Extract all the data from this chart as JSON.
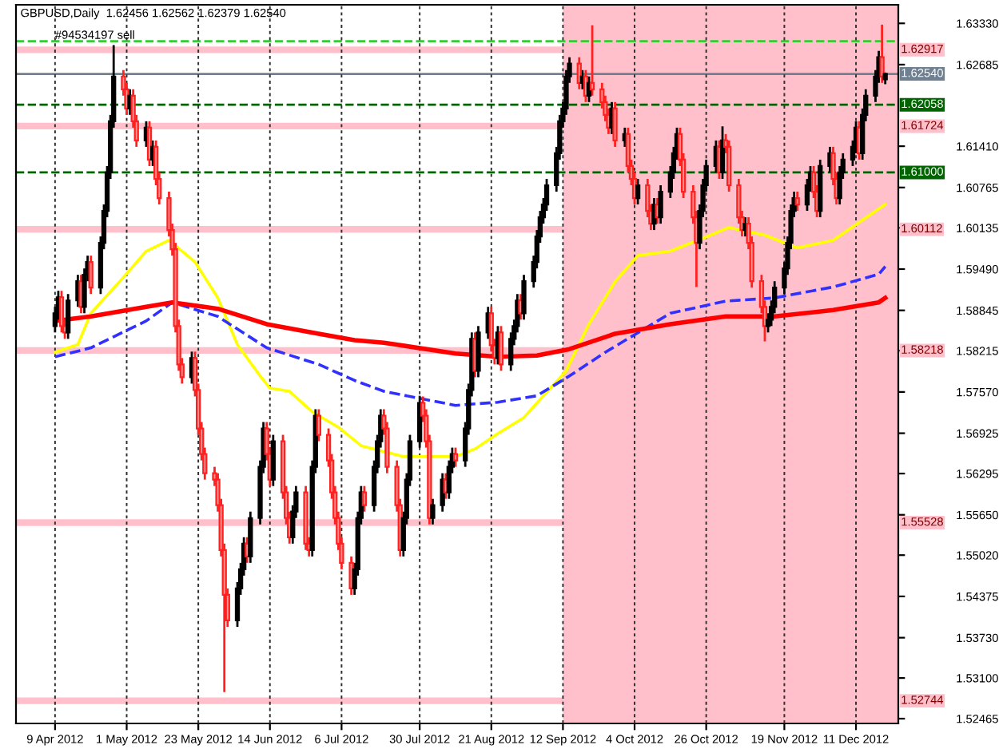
{
  "chart_data": {
    "type": "candlestick",
    "title": "GBPUSD,Daily  1.62456 1.62562 1.62379 1.62540",
    "x": [
      "2012-04-09",
      "2012-04-10",
      "2012-04-11",
      "2012-04-12",
      "2012-04-13",
      "2012-04-16",
      "2012-04-17",
      "2012-04-18",
      "2012-04-19",
      "2012-04-20",
      "2012-04-23",
      "2012-04-24",
      "2012-04-25",
      "2012-04-26",
      "2012-04-27",
      "2012-04-30",
      "2012-05-01",
      "2012-05-02",
      "2012-05-03",
      "2012-05-04",
      "2012-05-07",
      "2012-05-08",
      "2012-05-09",
      "2012-05-10",
      "2012-05-11",
      "2012-05-14",
      "2012-05-15",
      "2012-05-16",
      "2012-05-17",
      "2012-05-18",
      "2012-05-21",
      "2012-05-22",
      "2012-05-23",
      "2012-05-24",
      "2012-05-25",
      "2012-05-28",
      "2012-05-29",
      "2012-05-30",
      "2012-05-31",
      "2012-06-01",
      "2012-06-04",
      "2012-06-05",
      "2012-06-06",
      "2012-06-07",
      "2012-06-08",
      "2012-06-11",
      "2012-06-12",
      "2012-06-13",
      "2012-06-14",
      "2012-06-15",
      "2012-06-18",
      "2012-06-19",
      "2012-06-20",
      "2012-06-21",
      "2012-06-22",
      "2012-06-25",
      "2012-06-26",
      "2012-06-27",
      "2012-06-28",
      "2012-06-29",
      "2012-07-02",
      "2012-07-03",
      "2012-07-04",
      "2012-07-05",
      "2012-07-06",
      "2012-07-09",
      "2012-07-10",
      "2012-07-11",
      "2012-07-12",
      "2012-07-13",
      "2012-07-16",
      "2012-07-17",
      "2012-07-18",
      "2012-07-19",
      "2012-07-20",
      "2012-07-23",
      "2012-07-24",
      "2012-07-25",
      "2012-07-26",
      "2012-07-27",
      "2012-07-30",
      "2012-07-31",
      "2012-08-01",
      "2012-08-02",
      "2012-08-03",
      "2012-08-06",
      "2012-08-07",
      "2012-08-08",
      "2012-08-09",
      "2012-08-10",
      "2012-08-13",
      "2012-08-14",
      "2012-08-15",
      "2012-08-16",
      "2012-08-17",
      "2012-08-20",
      "2012-08-21",
      "2012-08-22",
      "2012-08-23",
      "2012-08-24",
      "2012-08-27",
      "2012-08-28",
      "2012-08-29",
      "2012-08-30",
      "2012-08-31",
      "2012-09-03",
      "2012-09-04",
      "2012-09-05",
      "2012-09-06",
      "2012-09-07",
      "2012-09-10",
      "2012-09-11",
      "2012-09-12",
      "2012-09-13",
      "2012-09-14",
      "2012-09-17",
      "2012-09-18",
      "2012-09-19",
      "2012-09-20",
      "2012-09-21",
      "2012-09-24",
      "2012-09-25",
      "2012-09-26",
      "2012-09-27",
      "2012-09-28",
      "2012-10-01",
      "2012-10-02",
      "2012-10-03",
      "2012-10-04",
      "2012-10-05",
      "2012-10-08",
      "2012-10-09",
      "2012-10-10",
      "2012-10-11",
      "2012-10-12",
      "2012-10-15",
      "2012-10-16",
      "2012-10-17",
      "2012-10-18",
      "2012-10-19",
      "2012-10-22",
      "2012-10-23",
      "2012-10-24",
      "2012-10-25",
      "2012-10-26",
      "2012-10-29",
      "2012-10-30",
      "2012-10-31",
      "2012-11-01",
      "2012-11-02",
      "2012-11-05",
      "2012-11-06",
      "2012-11-07",
      "2012-11-08",
      "2012-11-09",
      "2012-11-12",
      "2012-11-13",
      "2012-11-14",
      "2012-11-15",
      "2012-11-16",
      "2012-11-19",
      "2012-11-20",
      "2012-11-21",
      "2012-11-22",
      "2012-11-23",
      "2012-11-26",
      "2012-11-27",
      "2012-11-28",
      "2012-11-29",
      "2012-11-30",
      "2012-12-03",
      "2012-12-04",
      "2012-12-05",
      "2012-12-06",
      "2012-12-07",
      "2012-12-10",
      "2012-12-11",
      "2012-12-12",
      "2012-12-13",
      "2012-12-14",
      "2012-12-17",
      "2012-12-18",
      "2012-12-19",
      "2012-12-20"
    ],
    "ohlc": [
      [
        1.586,
        1.589,
        1.585,
        1.588
      ],
      [
        1.588,
        1.5915,
        1.587,
        1.5905
      ],
      [
        1.5905,
        1.5915,
        1.585,
        1.586
      ],
      [
        1.586,
        1.587,
        1.584,
        1.585
      ],
      [
        1.585,
        1.591,
        1.584,
        1.59
      ],
      [
        1.59,
        1.594,
        1.589,
        1.593
      ],
      [
        1.593,
        1.594,
        1.588,
        1.589
      ],
      [
        1.589,
        1.595,
        1.588,
        1.594
      ],
      [
        1.594,
        1.597,
        1.593,
        1.596
      ],
      [
        1.596,
        1.597,
        1.591,
        1.592
      ],
      [
        1.592,
        1.6,
        1.591,
        1.599
      ],
      [
        1.599,
        1.605,
        1.598,
        1.604
      ],
      [
        1.604,
        1.611,
        1.603,
        1.61
      ],
      [
        1.61,
        1.619,
        1.609,
        1.618
      ],
      [
        1.618,
        1.6299,
        1.617,
        1.625
      ],
      [
        1.625,
        1.626,
        1.622,
        1.623
      ],
      [
        1.623,
        1.624,
        1.619,
        1.62
      ],
      [
        1.62,
        1.623,
        1.619,
        1.622
      ],
      [
        1.622,
        1.623,
        1.617,
        1.618
      ],
      [
        1.618,
        1.619,
        1.614,
        1.615
      ],
      [
        1.615,
        1.618,
        1.614,
        1.617
      ],
      [
        1.617,
        1.618,
        1.611,
        1.612
      ],
      [
        1.612,
        1.615,
        1.611,
        1.614
      ],
      [
        1.614,
        1.615,
        1.608,
        1.609
      ],
      [
        1.609,
        1.61,
        1.605,
        1.606
      ],
      [
        1.606,
        1.607,
        1.6,
        1.601
      ],
      [
        1.601,
        1.602,
        1.597,
        1.598
      ],
      [
        1.598,
        1.599,
        1.585,
        1.586
      ],
      [
        1.586,
        1.587,
        1.579,
        1.58
      ],
      [
        1.58,
        1.581,
        1.577,
        1.578
      ],
      [
        1.578,
        1.582,
        1.577,
        1.581
      ],
      [
        1.581,
        1.582,
        1.575,
        1.576
      ],
      [
        1.576,
        1.577,
        1.569,
        1.57
      ],
      [
        1.57,
        1.571,
        1.565,
        1.566
      ],
      [
        1.566,
        1.567,
        1.562,
        1.563
      ],
      [
        1.563,
        1.564,
        1.561,
        1.562
      ],
      [
        1.562,
        1.563,
        1.557,
        1.558
      ],
      [
        1.558,
        1.559,
        1.55,
        1.551
      ],
      [
        1.551,
        1.552,
        1.5288,
        1.544
      ],
      [
        1.544,
        1.545,
        1.539,
        1.54
      ],
      [
        1.54,
        1.546,
        1.539,
        1.545
      ],
      [
        1.545,
        1.549,
        1.544,
        1.548
      ],
      [
        1.548,
        1.553,
        1.547,
        1.552
      ],
      [
        1.552,
        1.553,
        1.549,
        1.55
      ],
      [
        1.55,
        1.557,
        1.549,
        1.556
      ],
      [
        1.556,
        1.565,
        1.555,
        1.564
      ],
      [
        1.564,
        1.571,
        1.563,
        1.57
      ],
      [
        1.57,
        1.571,
        1.565,
        1.566
      ],
      [
        1.566,
        1.567,
        1.561,
        1.562
      ],
      [
        1.562,
        1.569,
        1.561,
        1.568
      ],
      [
        1.568,
        1.569,
        1.559,
        1.56
      ],
      [
        1.56,
        1.561,
        1.555,
        1.556
      ],
      [
        1.556,
        1.557,
        1.552,
        1.553
      ],
      [
        1.553,
        1.558,
        1.552,
        1.557
      ],
      [
        1.557,
        1.561,
        1.556,
        1.56
      ],
      [
        1.56,
        1.561,
        1.551,
        1.552
      ],
      [
        1.552,
        1.553,
        1.55,
        1.551
      ],
      [
        1.551,
        1.565,
        1.55,
        1.564
      ],
      [
        1.564,
        1.573,
        1.563,
        1.572
      ],
      [
        1.572,
        1.573,
        1.568,
        1.569
      ],
      [
        1.569,
        1.57,
        1.564,
        1.565
      ],
      [
        1.565,
        1.566,
        1.559,
        1.56
      ],
      [
        1.56,
        1.561,
        1.555,
        1.556
      ],
      [
        1.556,
        1.557,
        1.551,
        1.552
      ],
      [
        1.552,
        1.553,
        1.548,
        1.549
      ],
      [
        1.549,
        1.55,
        1.544,
        1.545
      ],
      [
        1.545,
        1.549,
        1.544,
        1.548
      ],
      [
        1.548,
        1.557,
        1.547,
        1.556
      ],
      [
        1.556,
        1.561,
        1.555,
        1.56
      ],
      [
        1.56,
        1.561,
        1.557,
        1.558
      ],
      [
        1.558,
        1.565,
        1.557,
        1.564
      ],
      [
        1.564,
        1.569,
        1.563,
        1.568
      ],
      [
        1.568,
        1.573,
        1.567,
        1.572
      ],
      [
        1.572,
        1.573,
        1.569,
        1.57
      ],
      [
        1.57,
        1.571,
        1.563,
        1.564
      ],
      [
        1.564,
        1.565,
        1.557,
        1.558
      ],
      [
        1.558,
        1.559,
        1.55,
        1.551
      ],
      [
        1.551,
        1.557,
        1.55,
        1.556
      ],
      [
        1.556,
        1.563,
        1.555,
        1.562
      ],
      [
        1.562,
        1.569,
        1.561,
        1.568
      ],
      [
        1.568,
        1.5751,
        1.567,
        1.574
      ],
      [
        1.574,
        1.575,
        1.571,
        1.572
      ],
      [
        1.572,
        1.573,
        1.567,
        1.568
      ],
      [
        1.568,
        1.569,
        1.555,
        1.556
      ],
      [
        1.556,
        1.559,
        1.555,
        1.558
      ],
      [
        1.558,
        1.563,
        1.557,
        1.562
      ],
      [
        1.562,
        1.563,
        1.559,
        1.56
      ],
      [
        1.56,
        1.565,
        1.559,
        1.564
      ],
      [
        1.564,
        1.567,
        1.563,
        1.566
      ],
      [
        1.566,
        1.567,
        1.564,
        1.565
      ],
      [
        1.565,
        1.571,
        1.564,
        1.57
      ],
      [
        1.57,
        1.577,
        1.569,
        1.576
      ],
      [
        1.576,
        1.585,
        1.575,
        1.584
      ],
      [
        1.584,
        1.585,
        1.578,
        1.579
      ],
      [
        1.579,
        1.586,
        1.578,
        1.585
      ],
      [
        1.585,
        1.589,
        1.584,
        1.588
      ],
      [
        1.588,
        1.589,
        1.582,
        1.583
      ],
      [
        1.583,
        1.584,
        1.58,
        1.581
      ],
      [
        1.581,
        1.586,
        1.58,
        1.585
      ],
      [
        1.585,
        1.586,
        1.579,
        1.58
      ],
      [
        1.58,
        1.585,
        1.579,
        1.584
      ],
      [
        1.584,
        1.587,
        1.583,
        1.586
      ],
      [
        1.586,
        1.591,
        1.585,
        1.59
      ],
      [
        1.59,
        1.591,
        1.587,
        1.588
      ],
      [
        1.588,
        1.594,
        1.587,
        1.593
      ],
      [
        1.593,
        1.597,
        1.592,
        1.596
      ],
      [
        1.596,
        1.601,
        1.595,
        1.6
      ],
      [
        1.6,
        1.604,
        1.599,
        1.603
      ],
      [
        1.603,
        1.606,
        1.602,
        1.605
      ],
      [
        1.605,
        1.609,
        1.604,
        1.608
      ],
      [
        1.608,
        1.614,
        1.607,
        1.613
      ],
      [
        1.613,
        1.619,
        1.612,
        1.618
      ],
      [
        1.618,
        1.621,
        1.617,
        1.62
      ],
      [
        1.62,
        1.626,
        1.619,
        1.625
      ],
      [
        1.625,
        1.628,
        1.624,
        1.627
      ],
      [
        1.627,
        1.628,
        1.623,
        1.624
      ],
      [
        1.624,
        1.626,
        1.623,
        1.625
      ],
      [
        1.625,
        1.626,
        1.621,
        1.622
      ],
      [
        1.622,
        1.625,
        1.621,
        1.624
      ],
      [
        1.624,
        1.633,
        1.622,
        1.623
      ],
      [
        1.623,
        1.624,
        1.62,
        1.621
      ],
      [
        1.621,
        1.622,
        1.618,
        1.619
      ],
      [
        1.619,
        1.62,
        1.616,
        1.617
      ],
      [
        1.617,
        1.621,
        1.616,
        1.62
      ],
      [
        1.62,
        1.621,
        1.614,
        1.615
      ],
      [
        1.615,
        1.617,
        1.614,
        1.616
      ],
      [
        1.616,
        1.617,
        1.61,
        1.611
      ],
      [
        1.611,
        1.612,
        1.608,
        1.609
      ],
      [
        1.609,
        1.61,
        1.605,
        1.606
      ],
      [
        1.606,
        1.609,
        1.605,
        1.608
      ],
      [
        1.608,
        1.609,
        1.603,
        1.604
      ],
      [
        1.604,
        1.605,
        1.601,
        1.602
      ],
      [
        1.602,
        1.606,
        1.601,
        1.605
      ],
      [
        1.605,
        1.606,
        1.602,
        1.603
      ],
      [
        1.603,
        1.608,
        1.602,
        1.607
      ],
      [
        1.607,
        1.611,
        1.606,
        1.61
      ],
      [
        1.61,
        1.614,
        1.609,
        1.613
      ],
      [
        1.613,
        1.617,
        1.612,
        1.616
      ],
      [
        1.616,
        1.617,
        1.611,
        1.612
      ],
      [
        1.612,
        1.613,
        1.606,
        1.607
      ],
      [
        1.607,
        1.608,
        1.602,
        1.603
      ],
      [
        1.603,
        1.604,
        1.5921,
        1.599
      ],
      [
        1.599,
        1.605,
        1.598,
        1.604
      ],
      [
        1.604,
        1.609,
        1.603,
        1.608
      ],
      [
        1.608,
        1.612,
        1.607,
        1.611
      ],
      [
        1.611,
        1.615,
        1.61,
        1.614
      ],
      [
        1.614,
        1.615,
        1.609,
        1.61
      ],
      [
        1.61,
        1.6172,
        1.609,
        1.615
      ],
      [
        1.615,
        1.616,
        1.613,
        1.614
      ],
      [
        1.614,
        1.615,
        1.607,
        1.608
      ],
      [
        1.608,
        1.609,
        1.602,
        1.603
      ],
      [
        1.603,
        1.604,
        1.6,
        1.601
      ],
      [
        1.601,
        1.603,
        1.6,
        1.602
      ],
      [
        1.602,
        1.603,
        1.598,
        1.599
      ],
      [
        1.599,
        1.6,
        1.592,
        1.593
      ],
      [
        1.593,
        1.594,
        1.588,
        1.589
      ],
      [
        1.589,
        1.59,
        1.5836,
        1.586
      ],
      [
        1.586,
        1.588,
        1.585,
        1.587
      ],
      [
        1.587,
        1.59,
        1.586,
        1.589
      ],
      [
        1.589,
        1.593,
        1.588,
        1.592
      ],
      [
        1.592,
        1.596,
        1.591,
        1.595
      ],
      [
        1.595,
        1.6,
        1.594,
        1.599
      ],
      [
        1.599,
        1.605,
        1.598,
        1.604
      ],
      [
        1.604,
        1.607,
        1.603,
        1.606
      ],
      [
        1.606,
        1.607,
        1.604,
        1.605
      ],
      [
        1.605,
        1.609,
        1.604,
        1.608
      ],
      [
        1.608,
        1.611,
        1.607,
        1.61
      ],
      [
        1.61,
        1.611,
        1.606,
        1.607
      ],
      [
        1.607,
        1.608,
        1.603,
        1.604
      ],
      [
        1.604,
        1.612,
        1.603,
        1.611
      ],
      [
        1.611,
        1.614,
        1.61,
        1.613
      ],
      [
        1.613,
        1.614,
        1.608,
        1.609
      ],
      [
        1.609,
        1.61,
        1.605,
        1.606
      ],
      [
        1.606,
        1.611,
        1.605,
        1.61
      ],
      [
        1.61,
        1.613,
        1.609,
        1.612
      ],
      [
        1.612,
        1.615,
        1.611,
        1.614
      ],
      [
        1.614,
        1.618,
        1.613,
        1.617
      ],
      [
        1.617,
        1.618,
        1.612,
        1.613
      ],
      [
        1.613,
        1.62,
        1.612,
        1.619
      ],
      [
        1.619,
        1.623,
        1.618,
        1.622
      ],
      [
        1.622,
        1.626,
        1.621,
        1.625
      ],
      [
        1.625,
        1.629,
        1.624,
        1.628
      ],
      [
        1.628,
        1.6331,
        1.624,
        1.625
      ],
      [
        1.62456,
        1.62562,
        1.62379,
        1.6254
      ]
    ],
    "series": [
      {
        "type": "line",
        "color": "#ffff00",
        "line_style": "solid",
        "x": [
          "2012-04-09",
          "2012-04-16",
          "2012-04-20",
          "2012-04-30",
          "2012-05-07",
          "2012-05-14",
          "2012-05-22",
          "2012-05-29",
          "2012-06-04",
          "2012-06-11",
          "2012-06-14",
          "2012-06-20",
          "2012-06-27",
          "2012-07-05",
          "2012-07-12",
          "2012-07-25",
          "2012-08-10",
          "2012-08-16",
          "2012-08-23",
          "2012-08-31",
          "2012-09-06",
          "2012-09-13",
          "2012-09-20",
          "2012-09-28",
          "2012-10-05",
          "2012-10-15",
          "2012-10-25",
          "2012-11-02",
          "2012-11-13",
          "2012-11-23",
          "2012-12-04",
          "2012-12-20"
        ],
        "values": [
          1.5819,
          1.5831,
          1.588,
          1.5936,
          1.5977,
          1.5994,
          1.596,
          1.5904,
          1.5831,
          1.5782,
          1.5763,
          1.5758,
          1.5726,
          1.5702,
          1.5673,
          1.5656,
          1.5656,
          1.5668,
          1.5692,
          1.5717,
          1.5751,
          1.579,
          1.5863,
          1.5929,
          1.597,
          1.5977,
          1.5997,
          1.6014,
          1.6002,
          1.5982,
          1.5994,
          1.605
        ]
      },
      {
        "type": "line",
        "color": "#3030ff",
        "line_style": "dashed",
        "x": [
          "2012-04-09",
          "2012-04-20",
          "2012-05-07",
          "2012-05-15",
          "2012-05-29",
          "2012-06-13",
          "2012-06-29",
          "2012-07-10",
          "2012-07-19",
          "2012-08-10",
          "2012-08-23",
          "2012-09-04",
          "2012-09-14",
          "2012-09-25",
          "2012-10-15",
          "2012-11-01",
          "2012-11-16",
          "2012-12-04",
          "2012-12-18",
          "2012-12-20"
        ],
        "values": [
          1.5812,
          1.5826,
          1.5868,
          1.5897,
          1.5875,
          1.5826,
          1.58,
          1.5775,
          1.5758,
          1.5736,
          1.5741,
          1.5751,
          1.5782,
          1.5819,
          1.588,
          1.5899,
          1.5904,
          1.5921,
          1.5941,
          1.5953
        ]
      },
      {
        "type": "line",
        "color": "#ff0000",
        "line_style": "solid",
        "x": [
          "2012-04-09",
          "2012-04-20",
          "2012-05-07",
          "2012-05-15",
          "2012-05-29",
          "2012-06-13",
          "2012-06-29",
          "2012-07-10",
          "2012-07-19",
          "2012-08-10",
          "2012-08-23",
          "2012-09-04",
          "2012-09-14",
          "2012-09-28",
          "2012-10-15",
          "2012-11-01",
          "2012-11-16",
          "2012-12-04",
          "2012-12-18",
          "2012-12-20"
        ],
        "values": [
          1.5868,
          1.5875,
          1.589,
          1.5897,
          1.5887,
          1.5863,
          1.5848,
          1.5838,
          1.5834,
          1.5817,
          1.5812,
          1.5814,
          1.5824,
          1.5848,
          1.5863,
          1.5875,
          1.5875,
          1.5885,
          1.5897,
          1.5904
        ]
      }
    ],
    "xlim": [
      "2012-03-28",
      "2012-12-24"
    ],
    "xticks": [
      {
        "value": "2012-04-09",
        "label": "9 Apr 2012"
      },
      {
        "value": "2012-05-01",
        "label": "1 May 2012"
      },
      {
        "value": "2012-05-23",
        "label": "23 May 2012"
      },
      {
        "value": "2012-06-14",
        "label": "14 Jun 2012"
      },
      {
        "value": "2012-07-06",
        "label": "6 Jul 2012"
      },
      {
        "value": "2012-07-30",
        "label": "30 Jul 2012"
      },
      {
        "value": "2012-08-21",
        "label": "21 Aug 2012"
      },
      {
        "value": "2012-09-12",
        "label": "12 Sep 2012"
      },
      {
        "value": "2012-10-04",
        "label": "4 Oct 2012"
      },
      {
        "value": "2012-10-26",
        "label": "26 Oct 2012"
      },
      {
        "value": "2012-11-19",
        "label": "19 Nov 2012"
      },
      {
        "value": "2012-12-11",
        "label": "11 Dec 2012"
      }
    ],
    "ylim": [
      1.5239,
      1.6362
    ],
    "yticks": [
      {
        "value": 1.6333,
        "label": "1.63330"
      },
      {
        "value": 1.62685,
        "label": "1.62685"
      },
      {
        "value": 1.6141,
        "label": "1.61410"
      },
      {
        "value": 1.60765,
        "label": "1.60765"
      },
      {
        "value": 1.60135,
        "label": "1.60135"
      },
      {
        "value": 1.5949,
        "label": "1.59490"
      },
      {
        "value": 1.58845,
        "label": "1.58845"
      },
      {
        "value": 1.58215,
        "label": "1.58215"
      },
      {
        "value": 1.5757,
        "label": "1.57570"
      },
      {
        "value": 1.56925,
        "label": "1.56925"
      },
      {
        "value": 1.56295,
        "label": "1.56295"
      },
      {
        "value": 1.5565,
        "label": "1.55650"
      },
      {
        "value": 1.5502,
        "label": "1.55020"
      },
      {
        "value": 1.54375,
        "label": "1.54375"
      },
      {
        "value": 1.5373,
        "label": "1.53730"
      },
      {
        "value": 1.531,
        "label": "1.53100"
      },
      {
        "value": 1.52465,
        "label": "1.52465"
      }
    ],
    "bands": [
      {
        "axis": "x",
        "from": "2012-09-12",
        "to": "2012-12-24",
        "color": "#ffc0cb"
      }
    ],
    "ref_lines": [
      {
        "axis": "y",
        "value": 1.6305,
        "color": "#33cc33",
        "line_style": "dashed"
      },
      {
        "axis": "y",
        "value": 1.62917,
        "label": "1.62917",
        "color": "#ffc0cb",
        "line_style": "solid"
      },
      {
        "axis": "y",
        "value": 1.6254,
        "label": "1.62540",
        "color": "#708090",
        "line_style": "solid"
      },
      {
        "axis": "y",
        "value": 1.62058,
        "label": "1.62058",
        "color": "#006400",
        "line_style": "dashed"
      },
      {
        "axis": "y",
        "value": 1.61724,
        "label": "1.61724",
        "color": "#ffc0cb",
        "line_style": "solid"
      },
      {
        "axis": "y",
        "value": 1.61,
        "label": "1.61000",
        "color": "#006400",
        "line_style": "dashed"
      },
      {
        "axis": "y",
        "value": 1.60112,
        "label": "1.60112",
        "color": "#ffc0cb",
        "line_style": "solid"
      },
      {
        "axis": "y",
        "value": 1.58218,
        "label": "1.58218",
        "color": "#ffc0cb",
        "line_style": "solid"
      },
      {
        "axis": "y",
        "value": 1.55528,
        "label": "1.55528",
        "color": "#ffc0cb",
        "line_style": "solid"
      },
      {
        "axis": "y",
        "value": 1.52744,
        "label": "1.52744",
        "color": "#ffc0cb",
        "line_style": "solid"
      }
    ],
    "annotations": [
      {
        "text": "#94534197 sell",
        "x": "2012-04-09",
        "y": 1.6305
      }
    ],
    "grid": "x",
    "legend": false
  }
}
